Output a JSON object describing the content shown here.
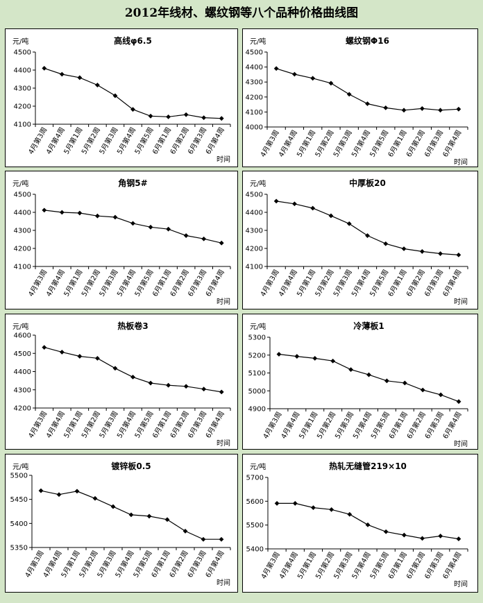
{
  "page": {
    "title": "2012年线材、螺纹钢等八个品种价格曲线图"
  },
  "chart_data": [
    {
      "type": "line",
      "title": "高线φ6.5",
      "ylabel": "元/吨",
      "xlabel": "时间",
      "categories": [
        "4月第3周",
        "4月第4周",
        "5月第1周",
        "5月第2周",
        "5月第3周",
        "5月第4周",
        "5月第5周",
        "6月第1周",
        "6月第2周",
        "6月第3周",
        "6月第4周"
      ],
      "values": [
        4410,
        4377,
        4358,
        4317,
        4258,
        4182,
        4145,
        4141,
        4153,
        4136,
        4132
      ],
      "ylim": [
        4100,
        4500
      ],
      "yticks": [
        4100,
        4200,
        4300,
        4400,
        4500
      ],
      "grid": false
    },
    {
      "type": "line",
      "title": "螺纹钢Φ16",
      "ylabel": "元/吨",
      "xlabel": "时间",
      "categories": [
        "4月第3周",
        "4月第4周",
        "5月第1周",
        "5月第2周",
        "5月第3周",
        "5月第4周",
        "5月第5周",
        "6月第1周",
        "6月第2周",
        "6月第3周",
        "6月第4周"
      ],
      "values": [
        4390,
        4352,
        4325,
        4292,
        4218,
        4155,
        4128,
        4112,
        4123,
        4112,
        4119
      ],
      "ylim": [
        4000,
        4500
      ],
      "yticks": [
        4000,
        4100,
        4200,
        4300,
        4400,
        4500
      ],
      "grid": false
    },
    {
      "type": "line",
      "title": "角钢5#",
      "ylabel": "元/吨",
      "xlabel": "时间",
      "categories": [
        "4月第3周",
        "4月第4周",
        "5月第1周",
        "5月第2周",
        "5月第3周",
        "5月第4周",
        "5月第5周",
        "6月第1周",
        "6月第2周",
        "6月第3周",
        "6月第4周"
      ],
      "values": [
        4412,
        4400,
        4396,
        4380,
        4373,
        4339,
        4318,
        4307,
        4271,
        4253,
        4230
      ],
      "ylim": [
        4100,
        4500
      ],
      "yticks": [
        4100,
        4200,
        4300,
        4400,
        4500
      ],
      "grid": false
    },
    {
      "type": "line",
      "title": "中厚板20",
      "ylabel": "元/吨",
      "xlabel": "时间",
      "categories": [
        "4月第3周",
        "4月第4周",
        "5月第1周",
        "5月第2周",
        "5月第3周",
        "5月第4周",
        "5月第5周",
        "6月第1周",
        "6月第2周",
        "6月第3周",
        "6月第4周"
      ],
      "values": [
        4462,
        4447,
        4423,
        4381,
        4337,
        4271,
        4226,
        4198,
        4183,
        4171,
        4164
      ],
      "ylim": [
        4100,
        4500
      ],
      "yticks": [
        4100,
        4200,
        4300,
        4400,
        4500
      ],
      "grid": false
    },
    {
      "type": "line",
      "title": "热板卷3",
      "ylabel": "元/吨",
      "xlabel": "时间",
      "categories": [
        "4月第3周",
        "4月第4周",
        "5月第1周",
        "5月第2周",
        "5月第3周",
        "5月第4周",
        "5月第5周",
        "6月第1周",
        "6月第2周",
        "6月第3周",
        "6月第4周"
      ],
      "values": [
        4533,
        4507,
        4484,
        4473,
        4418,
        4370,
        4337,
        4325,
        4319,
        4304,
        4288
      ],
      "ylim": [
        4200,
        4600
      ],
      "yticks": [
        4200,
        4300,
        4400,
        4500,
        4600
      ],
      "grid": false
    },
    {
      "type": "line",
      "title": "冷薄板1",
      "ylabel": "元/吨",
      "xlabel": "时间",
      "categories": [
        "4月第3周",
        "4月第4周",
        "5月第1周",
        "5月第2周",
        "5月第3周",
        "5月第4周",
        "5月第5周",
        "6月第1周",
        "6月第2周",
        "6月第3周",
        "6月第4周"
      ],
      "values": [
        5205,
        5193,
        5182,
        5167,
        5119,
        5090,
        5056,
        5044,
        5005,
        4978,
        4940
      ],
      "ylim": [
        4900,
        5300
      ],
      "yticks": [
        4900,
        5000,
        5100,
        5200,
        5300
      ],
      "grid": false
    },
    {
      "type": "line",
      "title": "镀锌板0.5",
      "ylabel": "元/吨",
      "xlabel": "时间",
      "categories": [
        "4月第3周",
        "4月第4周",
        "5月第1周",
        "5月第2周",
        "5月第3周",
        "5月第4周",
        "5月第5周",
        "6月第1周",
        "6月第2周",
        "6月第3周",
        "6月第4周"
      ],
      "values": [
        5468,
        5460,
        5467,
        5452,
        5435,
        5418,
        5415,
        5408,
        5384,
        5367,
        5367
      ],
      "ylim": [
        5350,
        5500
      ],
      "yticks": [
        5350,
        5400,
        5450,
        5500
      ],
      "grid": false
    },
    {
      "type": "line",
      "title": "热轧无缝管219×10",
      "ylabel": "元/吨",
      "xlabel": "时间",
      "categories": [
        "4月第3周",
        "4月第4周",
        "5月第1周",
        "5月第2周",
        "5月第3周",
        "5月第4周",
        "5月第5周",
        "6月第1周",
        "6月第2周",
        "6月第3周",
        "6月第4周"
      ],
      "values": [
        5591,
        5591,
        5573,
        5565,
        5545,
        5501,
        5472,
        5458,
        5444,
        5454,
        5442
      ],
      "ylim": [
        5400,
        5700
      ],
      "yticks": [
        5400,
        5500,
        5600,
        5700
      ],
      "grid": false
    }
  ]
}
